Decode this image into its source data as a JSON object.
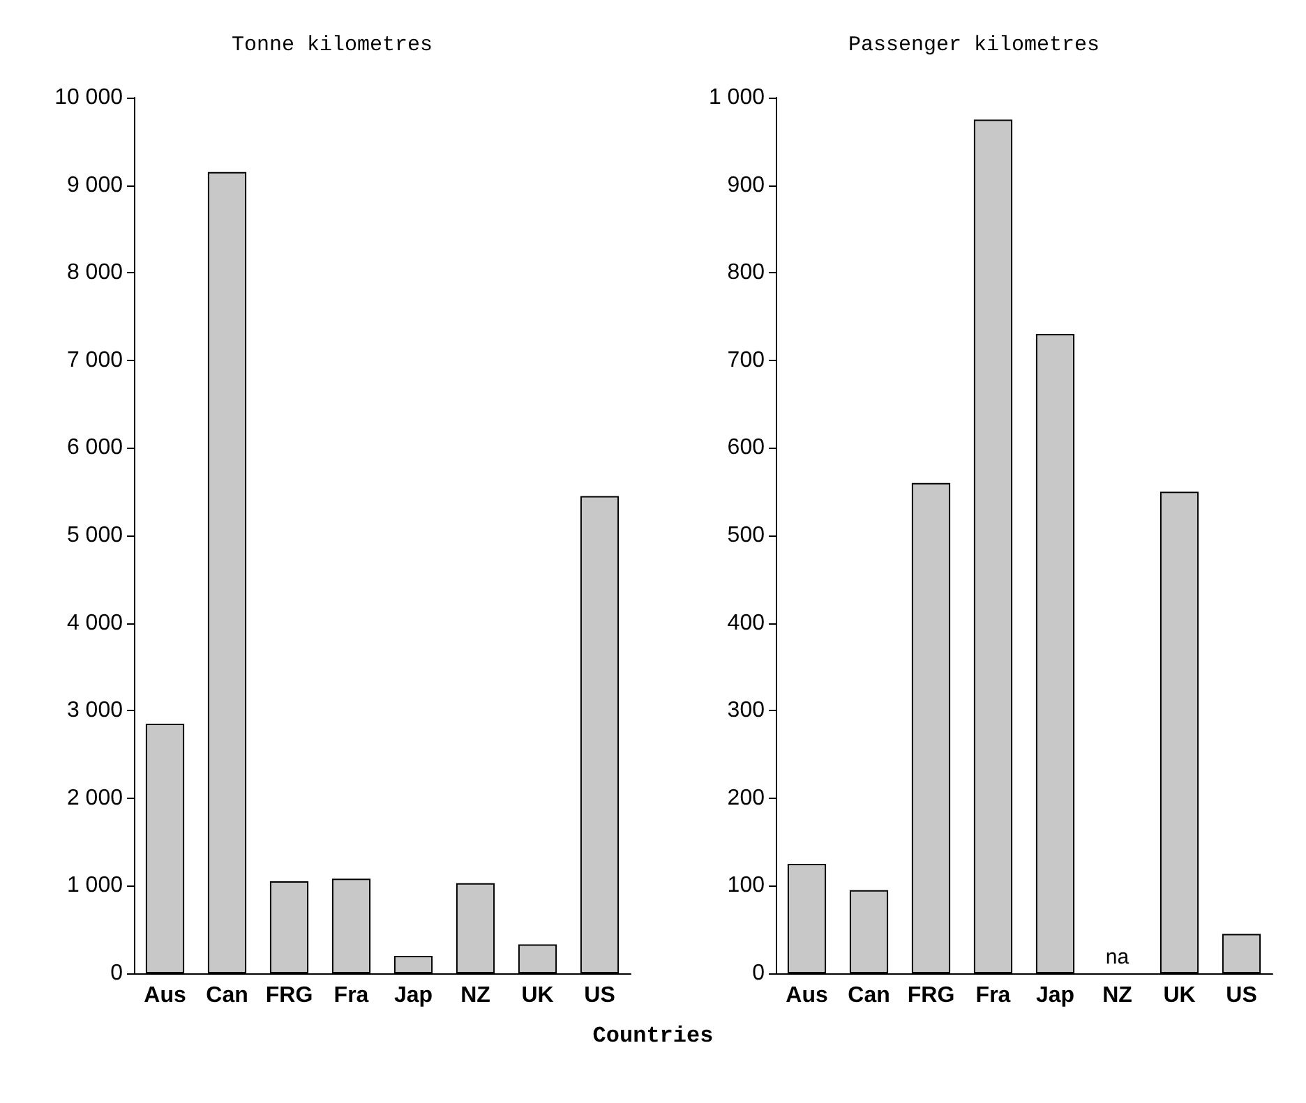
{
  "chart_data": [
    {
      "type": "bar",
      "title": "Tonne kilometres",
      "xlabel": "Countries",
      "categories": [
        "Aus",
        "Can",
        "FRG",
        "Fra",
        "Jap",
        "NZ",
        "UK",
        "US"
      ],
      "values": [
        2850,
        9150,
        1050,
        1080,
        200,
        1030,
        330,
        5450
      ],
      "color": "#c8c8c8",
      "ylim": [
        0,
        10000
      ],
      "yticks": [
        0,
        {
          "value": 1000,
          "label": "1 000"
        },
        {
          "value": 2000,
          "label": "2 000"
        },
        {
          "value": 3000,
          "label": "3 000"
        },
        {
          "value": 4000,
          "label": "4 000"
        },
        {
          "value": 5000,
          "label": "5 000"
        },
        {
          "value": 6000,
          "label": "6 000"
        },
        {
          "value": 7000,
          "label": "7 000"
        },
        {
          "value": 8000,
          "label": "8 000"
        },
        {
          "value": 9000,
          "label": "9 000"
        },
        {
          "value": 10000,
          "label": "10 000"
        }
      ],
      "grid": false
    },
    {
      "type": "bar",
      "title": "Passenger kilometres",
      "categories": [
        "Aus",
        "Can",
        "FRG",
        "Fra",
        "Jap",
        "NZ",
        "UK",
        "US"
      ],
      "values": [
        125,
        95,
        560,
        975,
        730,
        null,
        550,
        45
      ],
      "color": "#c8c8c8",
      "ylim": [
        0,
        1000
      ],
      "yticks": [
        0,
        100,
        200,
        300,
        400,
        500,
        600,
        700,
        800,
        900,
        {
          "value": 1000,
          "label": "1 000"
        }
      ],
      "annotations": [
        "na"
      ],
      "grid": false
    }
  ]
}
